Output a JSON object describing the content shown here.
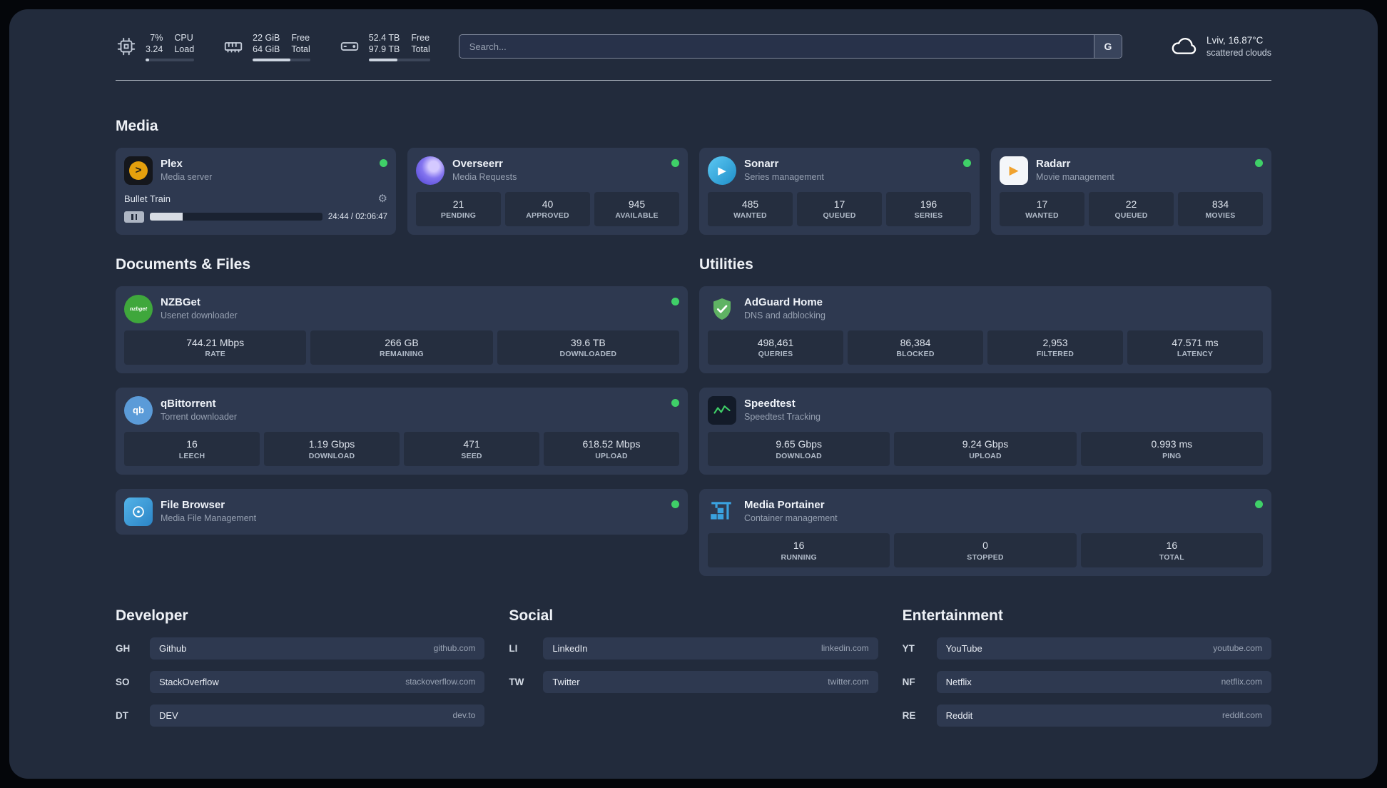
{
  "colors": {
    "status_online": "#3fd068",
    "background": "#222b3c",
    "card": "#2e3950",
    "stat_tile": "#252e3f",
    "plex_accent": "#e5a00d",
    "sonarr_accent": "#35c5f4",
    "radarr_accent": "#f0a22e",
    "adguard_accent": "#5fb363",
    "portainer_accent": "#3aa2e0"
  },
  "icons": {
    "gear": "⚙",
    "play": "▶",
    "plex_chevron": ">",
    "qb_text": "qb",
    "nzbget_text": "nzbget",
    "list": [
      "cpu-chip-icon",
      "memory-icon",
      "disk-icon",
      "cloud-icon",
      "plex-icon",
      "overseerr-icon",
      "sonarr-icon",
      "radarr-icon",
      "nzbget-icon",
      "qbittorrent-icon",
      "filebrowser-icon",
      "adguard-icon",
      "speedtest-icon",
      "portainer-icon",
      "status-dot",
      "gear-icon",
      "pause-icon"
    ]
  },
  "topbar": {
    "cpu": {
      "value1": "7%",
      "label1": "CPU",
      "value2": "3.24",
      "label2": "Load",
      "progress": 7
    },
    "memory": {
      "value1": "22 GiB",
      "label1": "Free",
      "value2": "64 GiB",
      "label2": "Total",
      "progress": 66
    },
    "disk": {
      "value1": "52.4 TB",
      "label1": "Free",
      "value2": "97.9 TB",
      "label2": "Total",
      "progress": 47
    },
    "search": {
      "placeholder": "Search...",
      "provider_label": "G"
    },
    "weather": {
      "location": "Lviv, 16.87°C",
      "condition": "scattered clouds"
    }
  },
  "sections": {
    "media": {
      "title": "Media",
      "plex": {
        "name": "Plex",
        "subtitle": "Media server",
        "status": "online",
        "player": {
          "title": "Bullet Train",
          "time": "24:44 / 02:06:47",
          "progress_percent": 19
        }
      },
      "overseerr": {
        "name": "Overseerr",
        "subtitle": "Media Requests",
        "status": "online",
        "stats": [
          {
            "value": "21",
            "label": "PENDING"
          },
          {
            "value": "40",
            "label": "APPROVED"
          },
          {
            "value": "945",
            "label": "AVAILABLE"
          }
        ]
      },
      "sonarr": {
        "name": "Sonarr",
        "subtitle": "Series management",
        "status": "online",
        "stats": [
          {
            "value": "485",
            "label": "WANTED"
          },
          {
            "value": "17",
            "label": "QUEUED"
          },
          {
            "value": "196",
            "label": "SERIES"
          }
        ]
      },
      "radarr": {
        "name": "Radarr",
        "subtitle": "Movie management",
        "status": "online",
        "stats": [
          {
            "value": "17",
            "label": "WANTED"
          },
          {
            "value": "22",
            "label": "QUEUED"
          },
          {
            "value": "834",
            "label": "MOVIES"
          }
        ]
      }
    },
    "documents": {
      "title": "Documents & Files",
      "nzbget": {
        "name": "NZBGet",
        "subtitle": "Usenet downloader",
        "status": "online",
        "stats": [
          {
            "value": "744.21 Mbps",
            "label": "RATE"
          },
          {
            "value": "266 GB",
            "label": "REMAINING"
          },
          {
            "value": "39.6 TB",
            "label": "DOWNLOADED"
          }
        ]
      },
      "qbittorrent": {
        "name": "qBittorrent",
        "subtitle": "Torrent downloader",
        "status": "online",
        "stats": [
          {
            "value": "16",
            "label": "LEECH"
          },
          {
            "value": "1.19 Gbps",
            "label": "DOWNLOAD"
          },
          {
            "value": "471",
            "label": "SEED"
          },
          {
            "value": "618.52 Mbps",
            "label": "UPLOAD"
          }
        ]
      },
      "filebrowser": {
        "name": "File Browser",
        "subtitle": "Media File Management",
        "status": "online"
      }
    },
    "utilities": {
      "title": "Utilities",
      "adguard": {
        "name": "AdGuard Home",
        "subtitle": "DNS and adblocking",
        "stats": [
          {
            "value": "498,461",
            "label": "QUERIES"
          },
          {
            "value": "86,384",
            "label": "BLOCKED"
          },
          {
            "value": "2,953",
            "label": "FILTERED"
          },
          {
            "value": "47.571 ms",
            "label": "LATENCY"
          }
        ]
      },
      "speedtest": {
        "name": "Speedtest",
        "subtitle": "Speedtest Tracking",
        "stats": [
          {
            "value": "9.65 Gbps",
            "label": "DOWNLOAD"
          },
          {
            "value": "9.24 Gbps",
            "label": "UPLOAD"
          },
          {
            "value": "0.993 ms",
            "label": "PING"
          }
        ]
      },
      "portainer": {
        "name": "Media Portainer",
        "subtitle": "Container management",
        "status": "online",
        "stats": [
          {
            "value": "16",
            "label": "RUNNING"
          },
          {
            "value": "0",
            "label": "STOPPED"
          },
          {
            "value": "16",
            "label": "TOTAL"
          }
        ]
      }
    }
  },
  "bookmarks": {
    "developer": {
      "title": "Developer",
      "items": [
        {
          "abbr": "GH",
          "name": "Github",
          "url": "github.com"
        },
        {
          "abbr": "SO",
          "name": "StackOverflow",
          "url": "stackoverflow.com"
        },
        {
          "abbr": "DT",
          "name": "DEV",
          "url": "dev.to"
        }
      ]
    },
    "social": {
      "title": "Social",
      "items": [
        {
          "abbr": "LI",
          "name": "LinkedIn",
          "url": "linkedin.com"
        },
        {
          "abbr": "TW",
          "name": "Twitter",
          "url": "twitter.com"
        }
      ]
    },
    "entertainment": {
      "title": "Entertainment",
      "items": [
        {
          "abbr": "YT",
          "name": "YouTube",
          "url": "youtube.com"
        },
        {
          "abbr": "NF",
          "name": "Netflix",
          "url": "netflix.com"
        },
        {
          "abbr": "RE",
          "name": "Reddit",
          "url": "reddit.com"
        }
      ]
    }
  }
}
